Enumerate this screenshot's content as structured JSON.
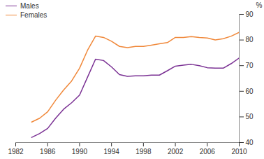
{
  "chart_data": {
    "type": "line",
    "y_label": "%",
    "x": [
      1984,
      1985,
      1986,
      1987,
      1988,
      1989,
      1990,
      1991,
      1992,
      1993,
      1994,
      1995,
      1996,
      1997,
      1998,
      1999,
      2000,
      2001,
      2002,
      2003,
      2004,
      2005,
      2006,
      2007,
      2008,
      2009,
      2010
    ],
    "series": [
      {
        "name": "Males",
        "color": "#7b3294",
        "values": [
          42,
          43.5,
          45.5,
          49.5,
          53,
          55.5,
          58.5,
          65.5,
          72.5,
          72,
          69.5,
          66.5,
          65.8,
          66,
          66,
          66.3,
          66.3,
          68,
          69.8,
          70.2,
          70.5,
          70,
          69.2,
          69,
          69,
          70.8,
          73
        ]
      },
      {
        "name": "Females",
        "color": "#f0883a",
        "values": [
          48,
          49.5,
          52,
          56.5,
          60.5,
          64,
          69,
          76,
          81.5,
          81,
          79.5,
          77.5,
          77,
          77.5,
          77.5,
          78,
          78.5,
          79,
          81,
          81,
          81.3,
          81,
          80.8,
          80,
          80.5,
          81.5,
          83
        ]
      }
    ],
    "xlim": [
      1982,
      2010
    ],
    "xticks": [
      1982,
      1986,
      1990,
      1994,
      1998,
      2002,
      2006,
      2010
    ],
    "ylim": [
      40,
      90
    ],
    "yticks": [
      40,
      50,
      60,
      70,
      80,
      90
    ],
    "grid": false,
    "legend": "top-left"
  }
}
